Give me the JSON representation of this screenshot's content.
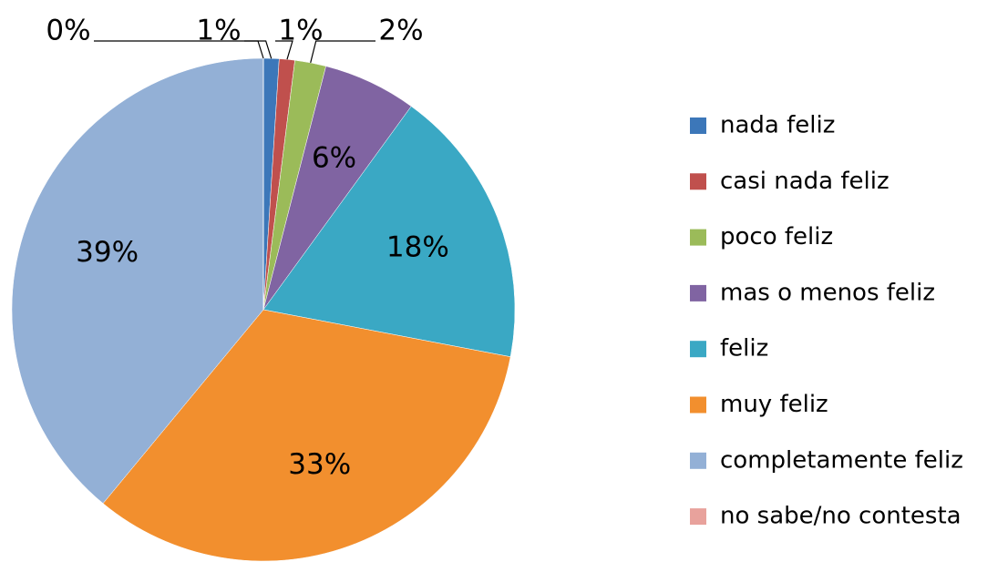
{
  "chart_data": {
    "type": "pie",
    "categories": [
      "nada feliz",
      "casi nada feliz",
      "poco feliz",
      "mas o menos feliz",
      "feliz",
      "muy feliz",
      "completamente feliz",
      "no sabe/no contesta"
    ],
    "values": [
      1,
      1,
      2,
      6,
      18,
      33,
      39,
      0
    ],
    "value_labels": [
      "1%",
      "1%",
      "2%",
      "6%",
      "18%",
      "33%",
      "39%",
      "0%"
    ],
    "colors": [
      "#3c77b9",
      "#c0504d",
      "#9bbb59",
      "#8064a2",
      "#3aa8c4",
      "#f28f2e",
      "#93b0d6",
      "#e8a29c"
    ],
    "legend": "right"
  }
}
